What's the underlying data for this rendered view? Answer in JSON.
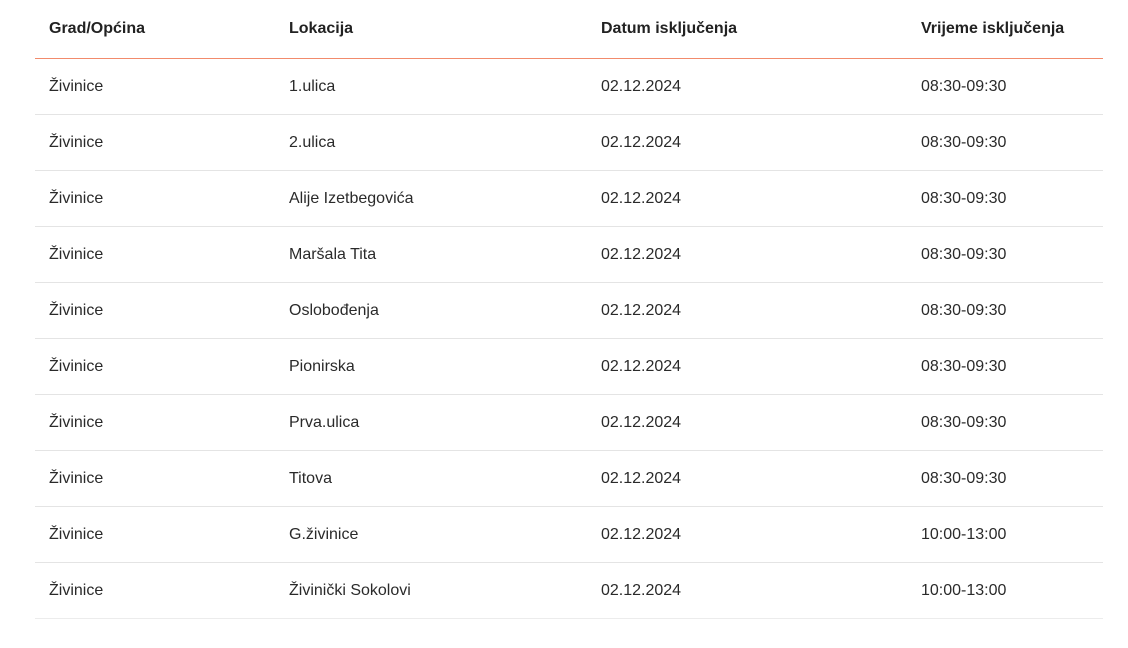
{
  "table": {
    "headers": [
      "Grad/Općina",
      "Lokacija",
      "Datum isključenja",
      "Vrijeme isključenja"
    ],
    "rows": [
      [
        "Živinice",
        "1.ulica",
        "02.12.2024",
        "08:30-09:30"
      ],
      [
        "Živinice",
        "2.ulica",
        "02.12.2024",
        "08:30-09:30"
      ],
      [
        "Živinice",
        "Alije Izetbegovića",
        "02.12.2024",
        "08:30-09:30"
      ],
      [
        "Živinice",
        "Maršala Tita",
        "02.12.2024",
        "08:30-09:30"
      ],
      [
        "Živinice",
        "Oslobođenja",
        "02.12.2024",
        "08:30-09:30"
      ],
      [
        "Živinice",
        "Pionirska",
        "02.12.2024",
        "08:30-09:30"
      ],
      [
        "Živinice",
        "Prva.ulica",
        "02.12.2024",
        "08:30-09:30"
      ],
      [
        "Živinice",
        "Titova",
        "02.12.2024",
        "08:30-09:30"
      ],
      [
        "Živinice",
        "G.živinice",
        "02.12.2024",
        "10:00-13:00"
      ],
      [
        "Živinice",
        "Živinički Sokolovi",
        "02.12.2024",
        "10:00-13:00"
      ]
    ]
  },
  "colors": {
    "header_border": "#f28b6c",
    "row_border": "#e4e4e4"
  }
}
